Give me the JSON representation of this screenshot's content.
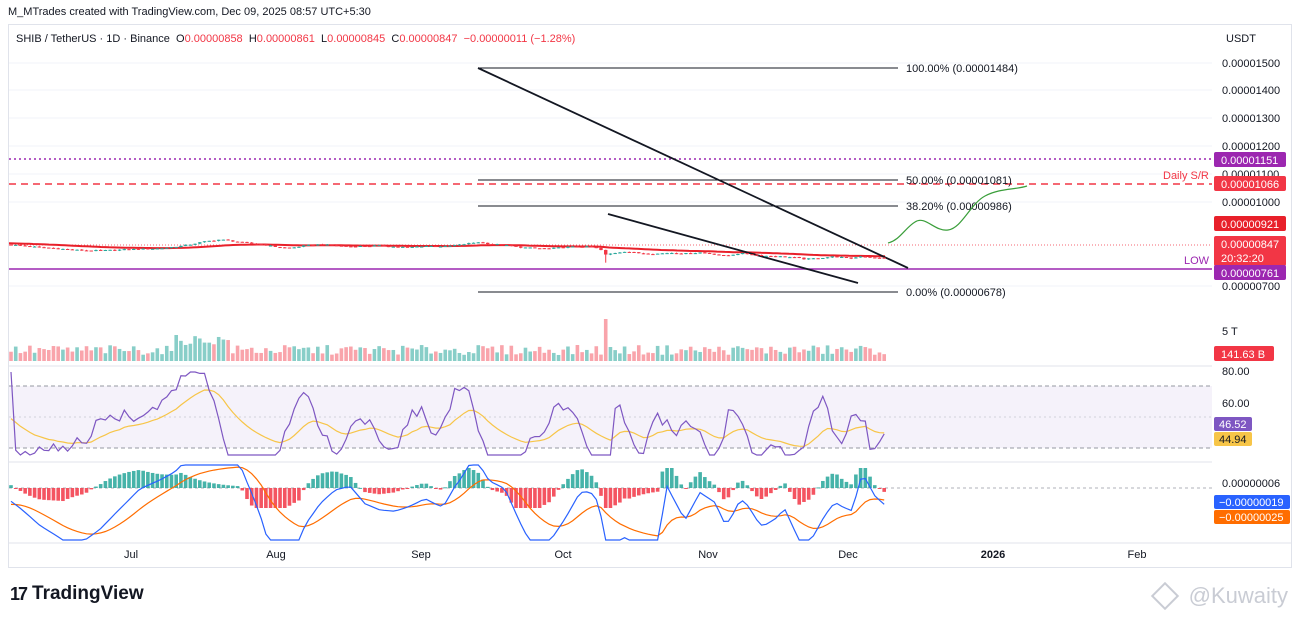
{
  "caption": "M_MTrades created with TradingView.com, Dec 09, 2025 08:57 UTC+5:30",
  "legend": {
    "symbol": "SHIB / TetherUS · 1D · Binance",
    "o_label": "O",
    "o_val": "0.00000858",
    "h_label": "H",
    "h_val": "0.00000861",
    "l_label": "L",
    "l_val": "0.00000845",
    "c_label": "C",
    "c_val": "0.00000847",
    "change": "−0.00000011 (−1.28%)"
  },
  "footer": {
    "logo_text": "TradingView",
    "watermark": "@Kuwaity"
  },
  "colors": {
    "up": "#26a69a",
    "down": "#f23645",
    "ema": "#e8202a",
    "purple": "#9c27b0",
    "grid": "#f0f3fa",
    "rsi_line": "#7e57c2",
    "rsi_ma": "#f7c548",
    "macd": "#2962ff",
    "signal": "#ff6d00",
    "projection": "#3a9e3a"
  },
  "chart_data": {
    "type": "candlestick",
    "currency": "USDT",
    "x_labels": [
      "Jul",
      "Aug",
      "Sep",
      "Oct",
      "Nov",
      "Dec",
      "2026",
      "Feb"
    ],
    "y_ticks": [
      "0.00001500",
      "0.00001400",
      "0.00001300",
      "0.00001200",
      "0.00001100",
      "0.00001000",
      "0.00000700"
    ],
    "price_badges": [
      {
        "text": "0.00001151",
        "color": "#9c27b0"
      },
      {
        "text": "0.00001066",
        "color": "#f23645"
      },
      {
        "text": "0.00000921",
        "color": "#e8202a"
      },
      {
        "text": "0.00000847",
        "color": "#f23645",
        "sub": "20:32:20"
      },
      {
        "text": "0.00000761",
        "color": "#9c27b0"
      }
    ],
    "fib_levels": [
      {
        "label": "100.00% (0.00001484)",
        "value": 1.484e-05
      },
      {
        "label": "50.00% (0.00001081)",
        "value": 1.081e-05
      },
      {
        "label": "38.20% (0.00000986)",
        "value": 9.86e-06
      },
      {
        "label": "0.00% (0.00000678)",
        "value": 6.78e-06
      }
    ],
    "annotations": {
      "daily_sr": "Daily S/R",
      "low": "LOW"
    },
    "levels": {
      "resistance_dotted": 1.151e-05,
      "daily_sr": 1.066e-05,
      "low": 7.61e-06
    },
    "ema_last": 9.21e-06,
    "last_close": 8.47e-06,
    "volume": {
      "label": "5 T",
      "last": "141.63 B"
    },
    "rsi": {
      "ticks": [
        "80.00",
        "60.00"
      ],
      "value": "46.52",
      "ma": "44.94"
    },
    "macd": {
      "hist": "0.00000006",
      "macd": "−0.00000019",
      "signal": "−0.00000025"
    }
  }
}
